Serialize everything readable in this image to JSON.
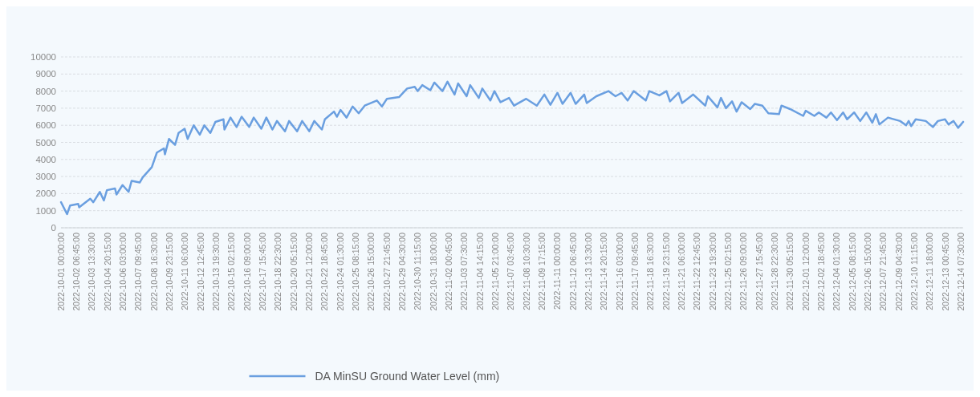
{
  "chart_data": {
    "type": "line",
    "legend": "bottom",
    "grid": "y",
    "ylim": [
      0,
      10000
    ],
    "yticks": [
      0,
      1000,
      2000,
      3000,
      4000,
      5000,
      6000,
      7000,
      8000,
      9000,
      10000
    ],
    "xlim": [
      "2022-10-01T00:00",
      "2022-12-14T12:00"
    ],
    "xticks": [
      {
        "value": "2022-10-01T00:00",
        "label": "2022-10-01 00:00:00"
      },
      {
        "value": "2022-10-02T06:45",
        "label": "2022-10-02 06:45:00"
      },
      {
        "value": "2022-10-03T13:30",
        "label": "2022-10-03 13:30:00"
      },
      {
        "value": "2022-10-04T20:15",
        "label": "2022-10-04 20:15:00"
      },
      {
        "value": "2022-10-06T03:00",
        "label": "2022-10-06 03:00:00"
      },
      {
        "value": "2022-10-07T09:45",
        "label": "2022-10-07 09:45:00"
      },
      {
        "value": "2022-10-08T16:30",
        "label": "2022-10-08 16:30:00"
      },
      {
        "value": "2022-10-09T23:15",
        "label": "2022-10-09 23:15:00"
      },
      {
        "value": "2022-10-11T06:00",
        "label": "2022-10-11 06:00:00"
      },
      {
        "value": "2022-10-12T12:45",
        "label": "2022-10-12 12:45:00"
      },
      {
        "value": "2022-10-13T19:30",
        "label": "2022-10-13 19:30:00"
      },
      {
        "value": "2022-10-15T02:15",
        "label": "2022-10-15 02:15:00"
      },
      {
        "value": "2022-10-16T09:00",
        "label": "2022-10-16 09:00:00"
      },
      {
        "value": "2022-10-17T15:45",
        "label": "2022-10-17 15:45:00"
      },
      {
        "value": "2022-10-18T22:30",
        "label": "2022-10-18 22:30:00"
      },
      {
        "value": "2022-10-20T05:15",
        "label": "2022-10-20 05:15:00"
      },
      {
        "value": "2022-10-21T12:00",
        "label": "2022-10-21 12:00:00"
      },
      {
        "value": "2022-10-22T18:45",
        "label": "2022-10-22 18:45:00"
      },
      {
        "value": "2022-10-24T01:30",
        "label": "2022-10-24 01:30:00"
      },
      {
        "value": "2022-10-25T08:15",
        "label": "2022-10-25 08:15:00"
      },
      {
        "value": "2022-10-26T15:00",
        "label": "2022-10-26 15:00:00"
      },
      {
        "value": "2022-10-27T21:45",
        "label": "2022-10-27 21:45:00"
      },
      {
        "value": "2022-10-29T04:30",
        "label": "2022-10-29 04:30:00"
      },
      {
        "value": "2022-10-30T11:15",
        "label": "2022-10-30 11:15:00"
      },
      {
        "value": "2022-10-31T18:00",
        "label": "2022-10-31 18:00:00"
      },
      {
        "value": "2022-11-02T00:45",
        "label": "2022-11-02 00:45:00"
      },
      {
        "value": "2022-11-03T07:30",
        "label": "2022-11-03 07:30:00"
      },
      {
        "value": "2022-11-04T14:15",
        "label": "2022-11-04 14:15:00"
      },
      {
        "value": "2022-11-05T21:00",
        "label": "2022-11-05 21:00:00"
      },
      {
        "value": "2022-11-07T03:45",
        "label": "2022-11-07 03:45:00"
      },
      {
        "value": "2022-11-08T10:30",
        "label": "2022-11-08 10:30:00"
      },
      {
        "value": "2022-11-09T17:15",
        "label": "2022-11-09 17:15:00"
      },
      {
        "value": "2022-11-11T00:00",
        "label": "2022-11-11 00:00:00"
      },
      {
        "value": "2022-11-12T06:45",
        "label": "2022-11-12 06:45:00"
      },
      {
        "value": "2022-11-13T13:30",
        "label": "2022-11-13 13:30:00"
      },
      {
        "value": "2022-11-14T20:15",
        "label": "2022-11-14 20:15:00"
      },
      {
        "value": "2022-11-16T03:00",
        "label": "2022-11-16 03:00:00"
      },
      {
        "value": "2022-11-17T09:45",
        "label": "2022-11-17 09:45:00"
      },
      {
        "value": "2022-11-18T16:30",
        "label": "2022-11-18 16:30:00"
      },
      {
        "value": "2022-11-19T23:15",
        "label": "2022-11-19 23:15:00"
      },
      {
        "value": "2022-11-21T06:00",
        "label": "2022-11-21 06:00:00"
      },
      {
        "value": "2022-11-22T12:45",
        "label": "2022-11-22 12:45:00"
      },
      {
        "value": "2022-11-23T19:30",
        "label": "2022-11-23 19:30:00"
      },
      {
        "value": "2022-11-25T02:15",
        "label": "2022-11-25 02:15:00"
      },
      {
        "value": "2022-11-26T09:00",
        "label": "2022-11-26 09:00:00"
      },
      {
        "value": "2022-11-27T15:45",
        "label": "2022-11-27 15:45:00"
      },
      {
        "value": "2022-11-28T22:30",
        "label": "2022-11-28 22:30:00"
      },
      {
        "value": "2022-11-30T05:15",
        "label": "2022-11-30 05:15:00"
      },
      {
        "value": "2022-12-01T12:00",
        "label": "2022-12-01 12:00:00"
      },
      {
        "value": "2022-12-02T18:45",
        "label": "2022-12-02 18:45:00"
      },
      {
        "value": "2022-12-04T01:30",
        "label": "2022-12-04 01:30:00"
      },
      {
        "value": "2022-12-05T08:15",
        "label": "2022-12-05 08:15:00"
      },
      {
        "value": "2022-12-06T15:00",
        "label": "2022-12-06 15:00:00"
      },
      {
        "value": "2022-12-07T21:45",
        "label": "2022-12-07 21:45:00"
      },
      {
        "value": "2022-12-09T04:30",
        "label": "2022-12-09 04:30:00"
      },
      {
        "value": "2022-12-10T11:15",
        "label": "2022-12-10 11:15:00"
      },
      {
        "value": "2022-12-11T18:00",
        "label": "2022-12-11 18:00:00"
      },
      {
        "value": "2022-12-13T00:45",
        "label": "2022-12-13 00:45:00"
      },
      {
        "value": "2022-12-14T07:30",
        "label": "2022-12-14 07:30:00"
      }
    ],
    "series": [
      {
        "name": "DA MinSU Ground Water Level (mm)",
        "color": "#6a9fe0",
        "x": [
          "2022-10-01T00:00",
          "2022-10-01T12:00",
          "2022-10-01T18:00",
          "2022-10-02T10:00",
          "2022-10-02T12:00",
          "2022-10-03T10:00",
          "2022-10-03T16:00",
          "2022-10-04T05:00",
          "2022-10-04T13:00",
          "2022-10-04T19:00",
          "2022-10-05T11:00",
          "2022-10-05T14:00",
          "2022-10-06T02:00",
          "2022-10-06T14:00",
          "2022-10-06T20:00",
          "2022-10-07T12:00",
          "2022-10-07T18:00",
          "2022-10-08T12:00",
          "2022-10-08T22:00",
          "2022-10-09T12:00",
          "2022-10-09T14:00",
          "2022-10-09T22:00",
          "2022-10-10T10:00",
          "2022-10-10T17:00",
          "2022-10-11T05:00",
          "2022-10-11T11:00",
          "2022-10-11T23:00",
          "2022-10-12T11:00",
          "2022-10-12T20:00",
          "2022-10-13T08:00",
          "2022-10-13T18:00",
          "2022-10-14T10:00",
          "2022-10-14T12:00",
          "2022-10-15T00:00",
          "2022-10-15T12:00",
          "2022-10-15T22:00",
          "2022-10-16T13:00",
          "2022-10-16T22:00",
          "2022-10-17T13:00",
          "2022-10-17T23:00",
          "2022-10-18T11:00",
          "2022-10-18T20:00",
          "2022-10-19T12:00",
          "2022-10-19T20:00",
          "2022-10-20T12:00",
          "2022-10-20T22:00",
          "2022-10-21T12:00",
          "2022-10-21T22:00",
          "2022-10-22T13:00",
          "2022-10-22T19:00",
          "2022-10-23T13:00",
          "2022-10-23T19:00",
          "2022-10-24T02:00",
          "2022-10-24T14:00",
          "2022-10-25T02:00",
          "2022-10-25T14:00",
          "2022-10-26T02:00",
          "2022-10-27T02:00",
          "2022-10-27T12:00",
          "2022-10-27T22:00",
          "2022-10-28T22:00",
          "2022-10-29T14:00",
          "2022-10-30T05:00",
          "2022-10-30T11:00",
          "2022-10-30T20:00",
          "2022-10-31T12:00",
          "2022-10-31T20:00",
          "2022-11-01T12:00",
          "2022-11-01T22:00",
          "2022-11-02T12:00",
          "2022-11-02T19:00",
          "2022-11-03T12:00",
          "2022-11-03T19:00",
          "2022-11-04T12:00",
          "2022-11-04T19:00",
          "2022-11-05T11:00",
          "2022-11-05T19:00",
          "2022-11-06T07:00",
          "2022-11-07T00:00",
          "2022-11-07T10:00",
          "2022-11-08T10:00",
          "2022-11-09T07:00",
          "2022-11-09T22:00",
          "2022-11-10T10:00",
          "2022-11-11T00:00",
          "2022-11-11T10:00",
          "2022-11-12T02:00",
          "2022-11-12T12:00",
          "2022-11-13T05:00",
          "2022-11-13T10:00",
          "2022-11-14T05:00",
          "2022-11-15T05:00",
          "2022-11-15T19:00",
          "2022-11-16T07:00",
          "2022-11-16T19:00",
          "2022-11-17T07:00",
          "2022-11-18T07:00",
          "2022-11-18T14:00",
          "2022-11-19T10:00",
          "2022-11-20T00:00",
          "2022-11-20T07:00",
          "2022-11-21T00:00",
          "2022-11-21T07:00",
          "2022-11-22T05:00",
          "2022-11-23T05:00",
          "2022-11-23T10:00",
          "2022-11-24T05:00",
          "2022-11-24T12:00",
          "2022-11-24T22:00",
          "2022-11-25T10:00",
          "2022-11-25T19:00",
          "2022-11-26T05:00",
          "2022-11-26T22:00",
          "2022-11-27T07:00",
          "2022-11-27T22:00",
          "2022-11-28T10:00",
          "2022-11-29T07:00",
          "2022-11-29T12:00",
          "2022-11-30T05:00",
          "2022-12-01T07:00",
          "2022-12-01T12:00",
          "2022-12-02T05:00",
          "2022-12-02T14:00",
          "2022-12-03T05:00",
          "2022-12-03T14:00",
          "2022-12-04T02:00",
          "2022-12-04T14:00",
          "2022-12-04T22:00",
          "2022-12-05T12:00",
          "2022-12-06T00:00",
          "2022-12-06T12:00",
          "2022-12-07T00:00",
          "2022-12-07T07:00",
          "2022-12-07T14:00",
          "2022-12-08T07:00",
          "2022-12-09T07:00",
          "2022-12-09T19:00",
          "2022-12-10T00:00",
          "2022-12-10T05:00",
          "2022-12-10T14:00",
          "2022-12-11T10:00",
          "2022-12-12T00:00",
          "2022-12-12T10:00",
          "2022-12-13T00:00",
          "2022-12-13T07:00",
          "2022-12-13T17:00",
          "2022-12-14T02:00",
          "2022-12-14T12:00"
        ],
        "values": [
          1500,
          800,
          1300,
          1400,
          1200,
          1700,
          1500,
          2100,
          1600,
          2200,
          2300,
          1950,
          2500,
          2100,
          2750,
          2650,
          2950,
          3550,
          4400,
          4650,
          4300,
          5200,
          4850,
          5550,
          5800,
          5200,
          6000,
          5450,
          6000,
          5550,
          6200,
          6350,
          5750,
          6450,
          5900,
          6500,
          5900,
          6450,
          5800,
          6450,
          5750,
          6250,
          5650,
          6250,
          5650,
          6250,
          5650,
          6250,
          5750,
          6350,
          6800,
          6500,
          6900,
          6450,
          7100,
          6700,
          7150,
          7450,
          7100,
          7550,
          7650,
          8150,
          8250,
          8000,
          8350,
          8050,
          8500,
          8000,
          8550,
          7800,
          8450,
          7700,
          8350,
          7600,
          8150,
          7450,
          8000,
          7350,
          7600,
          7150,
          7550,
          7150,
          7800,
          7200,
          7900,
          7250,
          7900,
          7250,
          7800,
          7300,
          7700,
          8000,
          7700,
          7900,
          7450,
          8000,
          7450,
          8000,
          7750,
          8000,
          7400,
          7900,
          7300,
          7800,
          7150,
          7700,
          7050,
          7600,
          7000,
          7400,
          6800,
          7350,
          6950,
          7250,
          7150,
          6700,
          6650,
          7150,
          6950,
          6550,
          6850,
          6550,
          6750,
          6450,
          6750,
          6300,
          6750,
          6350,
          6750,
          6250,
          6750,
          6150,
          6650,
          6050,
          6450,
          6250,
          6000,
          6250,
          5950,
          6350,
          6250,
          5900,
          6250,
          6350,
          6050,
          6250,
          5850,
          6200
        ]
      }
    ]
  }
}
